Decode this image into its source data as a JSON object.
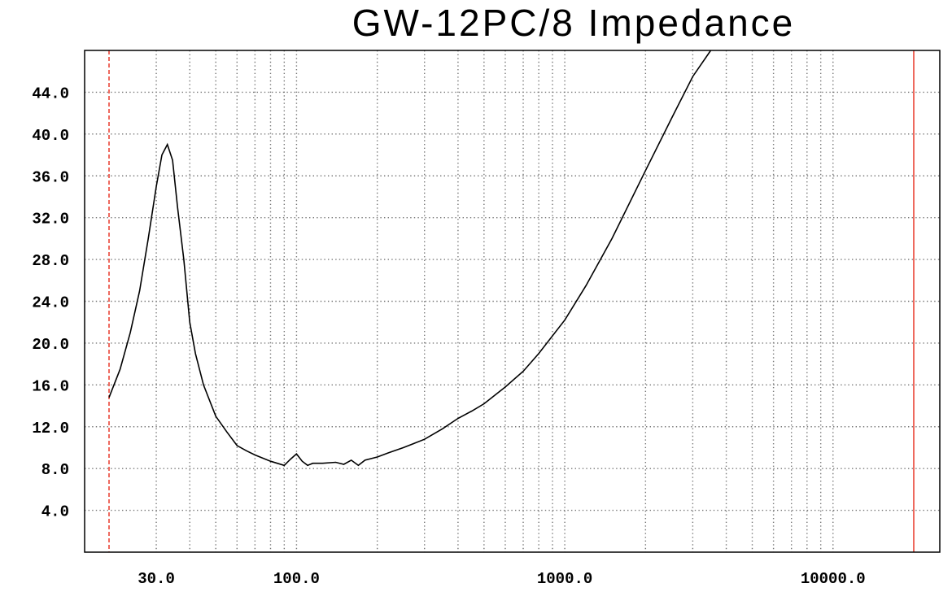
{
  "chart_data": {
    "type": "line",
    "title": "GW-12PC/8 Impedance",
    "xlabel": "",
    "ylabel": "",
    "x_scale": "log",
    "xlim": [
      20,
      20000
    ],
    "ylim": [
      0,
      48
    ],
    "grid": true,
    "y_ticks": [
      4,
      8,
      12,
      16,
      20,
      24,
      28,
      32,
      36,
      40,
      44
    ],
    "y_tick_labels": [
      "4.0",
      "8.0",
      "12.0",
      "16.0",
      "20.0",
      "24.0",
      "28.0",
      "32.0",
      "36.0",
      "40.0",
      "44.0"
    ],
    "x_ticks": [
      30,
      100,
      1000,
      10000
    ],
    "x_tick_labels": [
      "30.0",
      "100.0",
      "1000.0",
      "10000.0"
    ],
    "markers": [
      {
        "x": 20,
        "style": "dashed",
        "color": "#e8382a"
      },
      {
        "x": 20000,
        "style": "solid",
        "color": "#e8382a"
      }
    ],
    "series": [
      {
        "color": "#000000",
        "x": [
          20,
          22,
          24,
          26,
          28,
          30,
          31.5,
          33,
          34.5,
          36,
          38,
          40,
          42,
          45,
          50,
          55,
          60,
          65,
          70,
          80,
          90,
          95,
          100,
          105,
          110,
          115,
          125,
          140,
          150,
          160,
          170,
          180,
          200,
          220,
          250,
          300,
          350,
          400,
          450,
          500,
          600,
          700,
          800,
          1000,
          1200,
          1500,
          2000,
          2500,
          3000,
          3500
        ],
        "y": [
          14.8,
          17.5,
          21,
          25,
          30,
          35,
          38,
          39,
          37.5,
          33,
          28,
          22,
          19,
          16,
          13,
          11.5,
          10.2,
          9.7,
          9.3,
          8.7,
          8.3,
          8.9,
          9.4,
          8.7,
          8.3,
          8.5,
          8.5,
          8.6,
          8.4,
          8.8,
          8.3,
          8.8,
          9.1,
          9.5,
          10,
          10.8,
          11.8,
          12.8,
          13.5,
          14.2,
          15.8,
          17.3,
          19,
          22.2,
          25.5,
          30,
          36.5,
          41.5,
          45.5,
          48
        ]
      }
    ]
  }
}
